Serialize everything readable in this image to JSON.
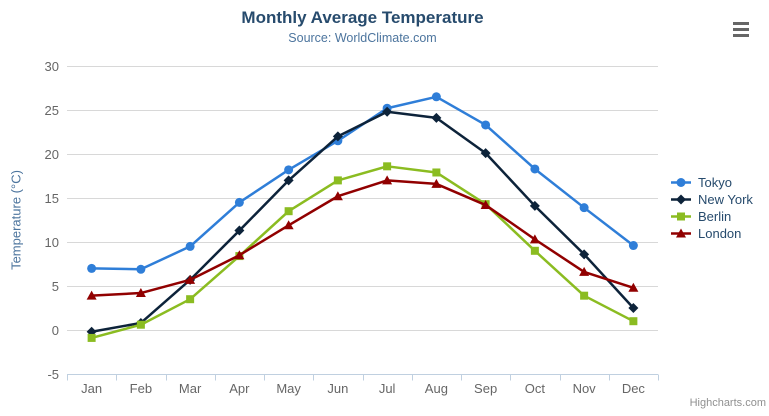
{
  "chart": {
    "title": "Monthly Average Temperature",
    "subtitle": "Source: WorldClimate.com",
    "credits": "Highcharts.com",
    "colors": {
      "title_text": "#274b6d",
      "subtitle_text": "#4d759e",
      "axis_title_text": "#4d759e",
      "axis_label_text": "#666666",
      "legend_text": "#274b6d",
      "grid_line": "#d8d8d8",
      "x_axis_line": "#c0d0e0",
      "credits_text": "#909090",
      "menu_icon": "#666666",
      "background": "#ffffff"
    }
  },
  "chart_data": {
    "type": "line",
    "title": "Monthly Average Temperature",
    "subtitle": "Source: WorldClimate.com",
    "categories": [
      "Jan",
      "Feb",
      "Mar",
      "Apr",
      "May",
      "Jun",
      "Jul",
      "Aug",
      "Sep",
      "Oct",
      "Nov",
      "Dec"
    ],
    "xlabel": "",
    "ylabel": "Temperature (°C)",
    "ylim": [
      -5,
      30
    ],
    "y_tick_interval": 5,
    "grid": true,
    "legend_position": "right",
    "series": [
      {
        "name": "Tokyo",
        "color": "#2f7ed8",
        "marker": "circle",
        "values": [
          7.0,
          6.9,
          9.5,
          14.5,
          18.2,
          21.5,
          25.2,
          26.5,
          23.3,
          18.3,
          13.9,
          9.6
        ]
      },
      {
        "name": "New York",
        "color": "#0d233a",
        "marker": "diamond",
        "values": [
          -0.2,
          0.8,
          5.7,
          11.3,
          17.0,
          22.0,
          24.8,
          24.1,
          20.1,
          14.1,
          8.6,
          2.5
        ]
      },
      {
        "name": "Berlin",
        "color": "#8bbc21",
        "marker": "square",
        "values": [
          -0.9,
          0.6,
          3.5,
          8.4,
          13.5,
          17.0,
          18.6,
          17.9,
          14.3,
          9.0,
          3.9,
          1.0
        ]
      },
      {
        "name": "London",
        "color": "#910000",
        "marker": "triangle",
        "values": [
          3.9,
          4.2,
          5.7,
          8.5,
          11.9,
          15.2,
          17.0,
          16.6,
          14.2,
          10.3,
          6.6,
          4.8
        ]
      }
    ]
  }
}
